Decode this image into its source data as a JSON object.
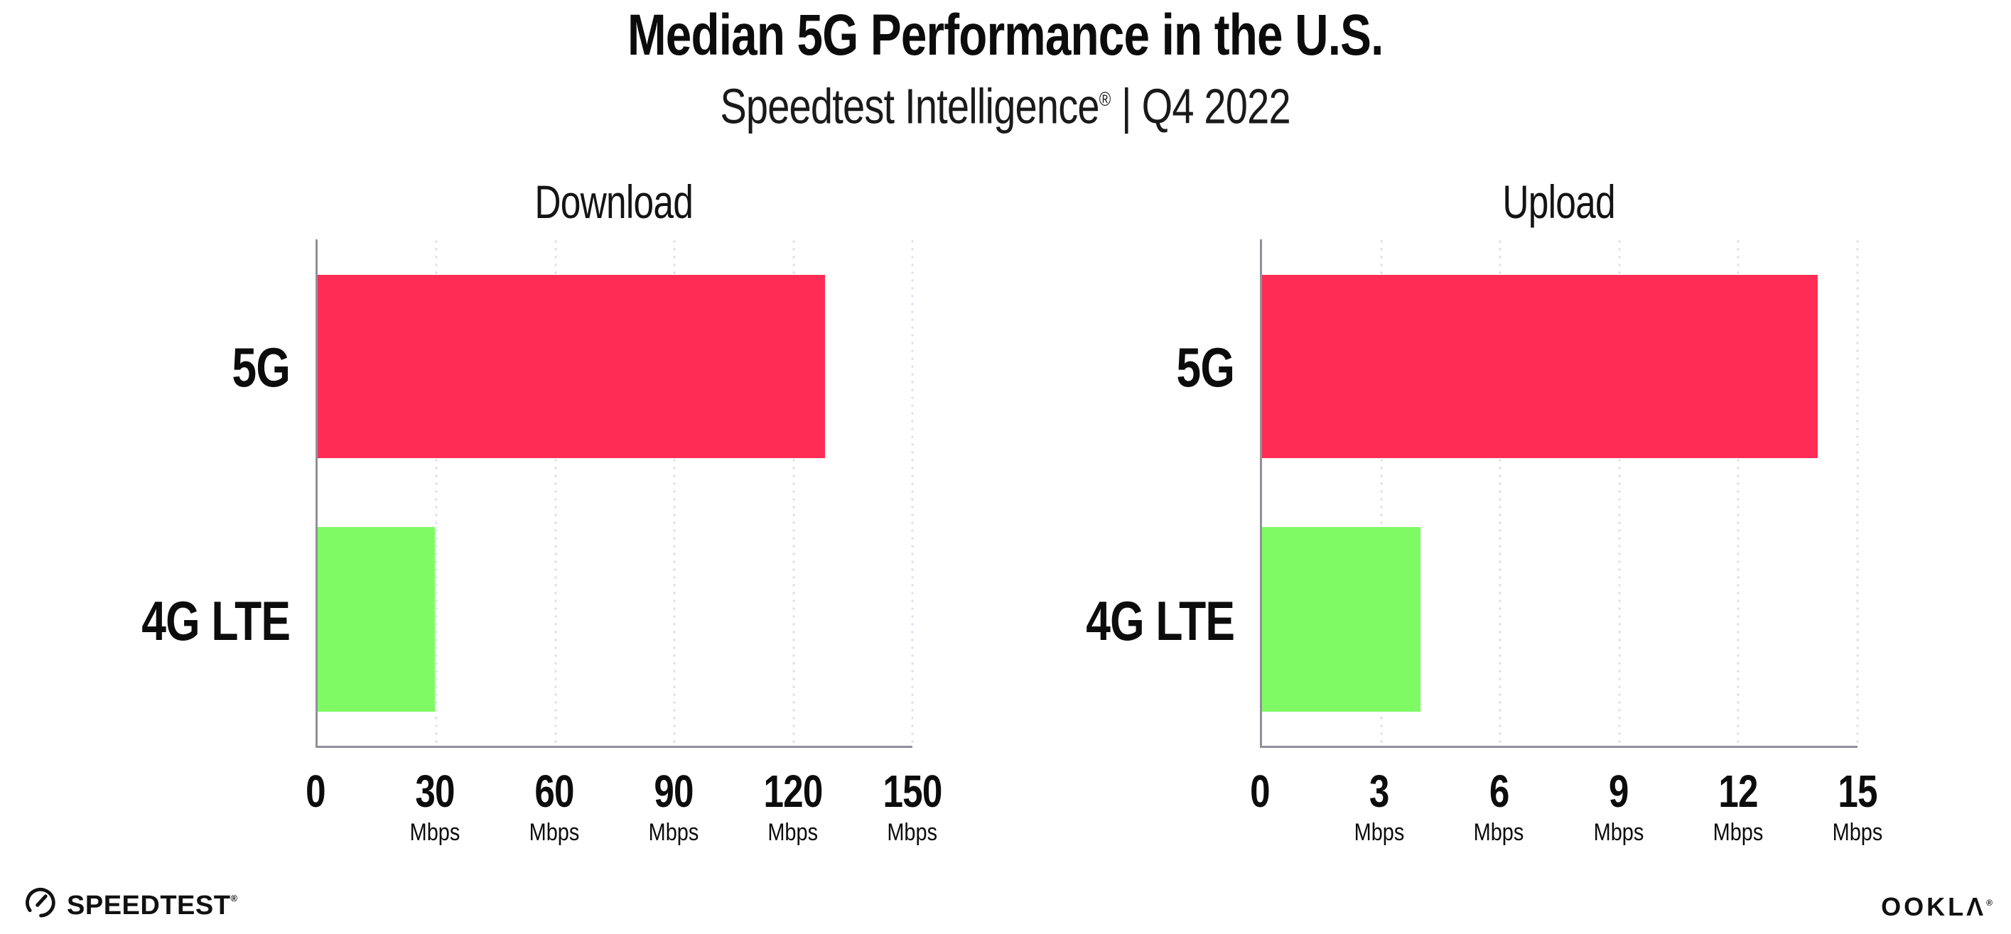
{
  "header": {
    "title": "Median 5G Performance in the U.S.",
    "subtitle_brand": "Speedtest Intelligence",
    "subtitle_reg": "®",
    "subtitle_sep": " | ",
    "subtitle_period": "Q4 2022"
  },
  "colors": {
    "bar_5g": "#FF2D55",
    "bar_4g_lte": "#7FFA64",
    "axis": "#90909A",
    "gridline": "#E2E2EE",
    "text": "#0F0F0F"
  },
  "chart_data": [
    {
      "type": "bar",
      "orientation": "horizontal",
      "title": "Download",
      "categories": [
        "5G",
        "4G LTE"
      ],
      "values": [
        128,
        29.5
      ],
      "unit": "Mbps",
      "xlim": [
        0,
        150
      ],
      "xticks": [
        0,
        30,
        60,
        90,
        120,
        150
      ],
      "bar_colors": [
        "#FF2D55",
        "#7FFA64"
      ],
      "grid": "vertical-dotted",
      "legend": false,
      "xlabel": "",
      "ylabel": ""
    },
    {
      "type": "bar",
      "orientation": "horizontal",
      "title": "Upload",
      "categories": [
        "5G",
        "4G LTE"
      ],
      "values": [
        14,
        4
      ],
      "unit": "Mbps",
      "xlim": [
        0,
        15
      ],
      "xticks": [
        0,
        3,
        6,
        9,
        12,
        15
      ],
      "bar_colors": [
        "#FF2D55",
        "#7FFA64"
      ],
      "grid": "vertical-dotted",
      "legend": false,
      "xlabel": "",
      "ylabel": ""
    }
  ],
  "footer": {
    "speedtest_label": "SPEEDTEST",
    "speedtest_reg": "®",
    "speedtest_icon": "gauge-icon",
    "ookla_label": "OOKLA",
    "ookla_reg": "®"
  }
}
